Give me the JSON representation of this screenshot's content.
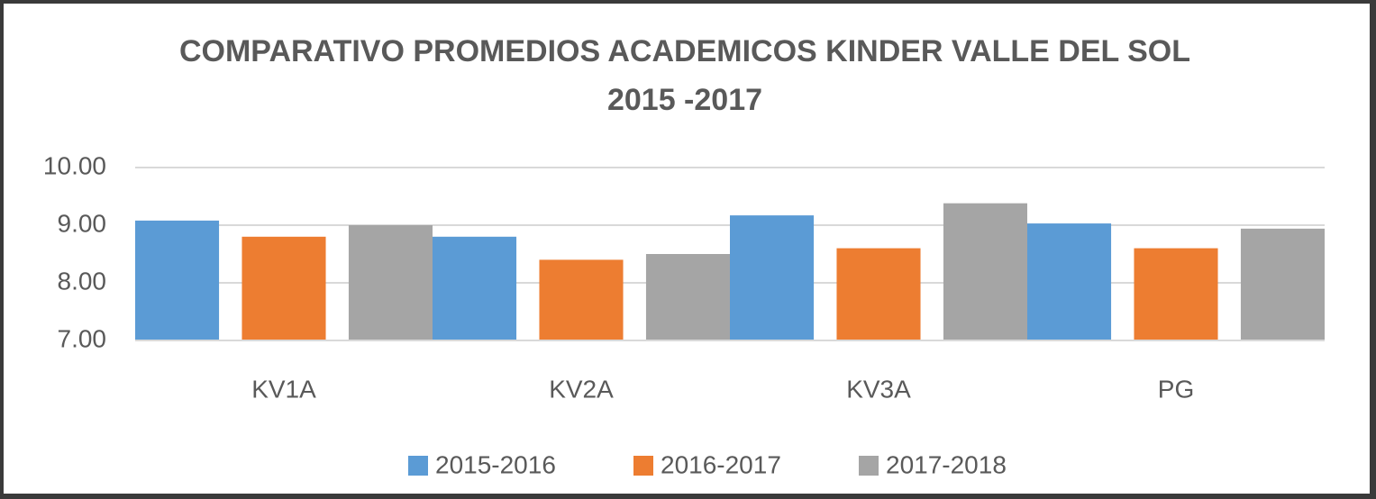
{
  "chart_data": {
    "type": "bar",
    "title": "COMPARATIVO PROMEDIOS ACADEMICOS KINDER VALLE DEL SOL 2015 -2017",
    "categories": [
      "KV1A",
      "KV2A",
      "KV3A",
      "PG"
    ],
    "series": [
      {
        "name": "2015-2016",
        "color": "#5b9bd5",
        "values": [
          9.08,
          8.8,
          9.17,
          9.03
        ]
      },
      {
        "name": "2016-2017",
        "color": "#ed7d31",
        "values": [
          8.8,
          8.4,
          8.6,
          8.6
        ]
      },
      {
        "name": "2017-2018",
        "color": "#a5a5a5",
        "values": [
          9.0,
          8.5,
          9.38,
          8.94
        ]
      }
    ],
    "ylim": [
      7,
      10
    ],
    "yticks": [
      {
        "value": 7,
        "label": "7.00"
      },
      {
        "value": 8,
        "label": "8.00"
      },
      {
        "value": 9,
        "label": "9.00"
      },
      {
        "value": 10,
        "label": "10.00"
      }
    ],
    "grid": true,
    "legend": "bottom"
  }
}
